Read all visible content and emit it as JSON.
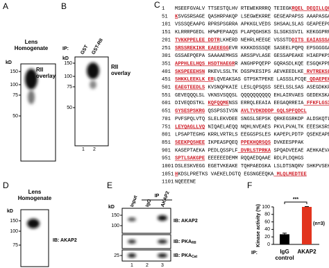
{
  "panels": {
    "a": {
      "letter": "A",
      "title": "Lens Homogenate",
      "kd_label": "kD",
      "markers": [
        150,
        100,
        75,
        50
      ],
      "blot_label": "RII overlay"
    },
    "b": {
      "letter": "B",
      "ip_label": "IP:",
      "lanes": [
        "GST",
        "GST-RII"
      ],
      "lane_numbers": [
        "1",
        "2"
      ],
      "kd_label": "kD",
      "markers": [
        150,
        100,
        75,
        50
      ],
      "blot_label": "RII overlay"
    },
    "c": {
      "letter": "C",
      "lines": [
        {
          "number": "1",
          "segments": [
            {
              "text": "MSEEFGVALV TTSESTQLHV RTEWEKRRRQ TEIEGK",
              "red": false
            },
            {
              "text": "RQEL DEQILLQHEE",
              "red": true
            }
          ]
        },
        {
          "number": "51",
          "segments": [
            {
              "text": "K",
              "red": true
            },
            {
              "text": "SVGSRSAGE QASHRPAKQP LSEGWEKRRE GEGEAPAPSS AAAPASGASP",
              "red": false
            }
          ]
        },
        {
          "number": "101",
          "segments": [
            {
              "text": "VSSSQEAAPG RPRSPSGRRA APKKGLVEDS SHSAALSLAS GEAPEEPGAV",
              "red": false
            }
          ]
        },
        {
          "number": "151",
          "segments": [
            {
              "text": "KLRRRPGEDL HPWPEPAAQS PLAPQGHSKS SLSGKSSVIL KEKGGPRRGG",
              "red": false
            }
          ]
        },
        {
          "number": "201",
          "segments": [
            {
              "text": "TVKKPPELEE DDTR",
              "red": true
            },
            {
              "text": "LKHERD NEHRLHEEGE VSSSTD",
              "red": false
            },
            {
              "text": "DITS EAIASSSADM",
              "red": true
            }
          ]
        },
        {
          "number": "251",
          "segments": [
            {
              "text": "SRSSREKIKR EAEEEGG",
              "red": true
            },
            {
              "text": "EVR KKKKDSSSQE SASEELPQPQ EPSGGGGAAP",
              "red": false
            }
          ]
        },
        {
          "number": "301",
          "segments": [
            {
              "text": "GSSAEPQEPA SAAAAEMHSS ARSSPVLASE GESSAPEAKE HIAEPKPSEA",
              "red": false
            }
          ]
        },
        {
          "number": "351",
          "segments": [
            {
              "text": "APPHLELHQS HSDTHAEGR",
              "red": true
            },
            {
              "text": "R ANGHPPQEPP GQRASDLKQE ESGQKPPEAL",
              "red": false
            }
          ]
        },
        {
          "number": "401",
          "segments": [
            {
              "text": "SKSPEEEHSN",
              "red": true
            },
            {
              "text": " RKEVLSSLTK DGSPKESIPS AEVKEEDLKE",
              "red": false
            },
            {
              "text": " RVTREKSLLS",
              "red": true
            }
          ]
        },
        {
          "number": "451",
          "segments": [
            {
              "text": "SHKKLEEKLK ER",
              "red": true
            },
            {
              "text": "LQVEAKSAS GTPSKTPEKE LASSSLPCQE",
              "red": false
            },
            {
              "text": " QDAEPEKKAV",
              "red": true
            }
          ]
        },
        {
          "number": "501",
          "segments": [
            {
              "text": "EAEGTEEDLS",
              "red": true
            },
            {
              "text": " KVSNQPKAIE LESLQPSQSS SEELSSLSAS ASEGDKKPLA",
              "red": false
            }
          ]
        },
        {
          "number": "551",
          "segments": [
            {
              "text": "GEVEQQQLSL VKNSVSQQSL QQQQQQQQQQ EHLAIRVAES GEDEKSKAEQ",
              "red": false
            }
          ]
        },
        {
          "number": "601",
          "segments": [
            {
              "text": "DIVEQDSTKL ",
              "red": false
            },
            {
              "text": "KQFQQME",
              "red": true
            },
            {
              "text": "NSS ERRQLEEAIA EEGAQRREIA",
              "red": false
            },
            {
              "text": " FFKFLGSINS",
              "red": true
            }
          ]
        },
        {
          "number": "651",
          "segments": [
            {
              "text": "GYSESPSKRG",
              "red": true
            },
            {
              "text": " QSSPSSIVSN ",
              "red": false
            },
            {
              "text": "AVLTVDKDDDP GQLSPFQDCL",
              "red": true
            }
          ]
        },
        {
          "number": "701",
          "segments": [
            {
              "text": "PVFSPQLVTQ SLELEKVDEE SNGSLSEPSK QRKEGSRKDP ALDSKQTLRE",
              "red": false
            }
          ]
        },
        {
          "number": "751",
          "segments": [
            {
              "text": "LEYQAGLLVQ",
              "red": true
            },
            {
              "text": " NIQAELAEQQ NQHLNVEAES PKVLPVALTK EEESKSRSKE",
              "red": false
            }
          ]
        },
        {
          "number": "801",
          "segments": [
            {
              "text": "LPSAPTEGHG KRRLVRTRLS EEGGSPSLES KAPEPLPDTP QSEKEAPEKE",
              "red": false
            }
          ]
        },
        {
          "number": "851",
          "segments": [
            {
              "text": "SEEKPQSHEE",
              "red": true
            },
            {
              "text": " IKPEASPQEQ ",
              "red": false
            },
            {
              "text": "PPEKHQRSQS",
              "red": true
            },
            {
              "text": " DVKEESPPAK",
              "red": false
            }
          ]
        },
        {
          "number": "901",
          "segments": [
            {
              "text": "KASEPTAEKA PEDLQSSPLF",
              "red": false
            },
            {
              "text": " DVRLSTPRKA",
              "red": true
            },
            {
              "text": " SPQADVEEAE AEHKAEVAPL",
              "red": false
            }
          ]
        },
        {
          "number": "951",
          "segments": [
            {
              "text": "SPTLSAKGPE",
              "red": true
            },
            {
              "text": " EEEEEEDEMM RQQAEDQAAE RDLPLDQHGS",
              "red": false
            }
          ]
        },
        {
          "number": "1001",
          "segments": [
            {
              "text": "DSLESKVEGG EGETVKEAKE TQHPAEDSKA LSLDTSNQRV SHKPVSEKKE",
              "red": false
            }
          ]
        },
        {
          "number": "1051",
          "segments": [
            {
              "text": "H",
              "red": true
            },
            {
              "text": "KDSLPRETKS VAEKELDGTQ EGSNGEEQKA",
              "red": false
            },
            {
              "text": " MLQLMEDTEE",
              "red": true
            }
          ]
        },
        {
          "number": "1101",
          "segments": [
            {
              "text": "NQEEENE",
              "red": false
            }
          ]
        }
      ]
    },
    "d": {
      "letter": "D",
      "title": "Lens Homogenate",
      "kd_label": "kD",
      "markers": [
        150,
        100,
        75
      ],
      "blot_label": "IB: AKAP2"
    },
    "e": {
      "letter": "E",
      "ip_label": "IP",
      "lanes": [
        "Input",
        "IgG",
        "AKAP2"
      ],
      "lane_numbers": [
        "1",
        "2",
        "3"
      ],
      "kd_label": "kD",
      "blots": [
        {
          "label": "IB: AKAP2",
          "markers": [
            150,
            100
          ]
        },
        {
          "label": "IB: PKA",
          "subscript": "RII",
          "markers": []
        },
        {
          "label": "IB: PKA",
          "subscript": "Cat",
          "markers": [
            25
          ]
        }
      ]
    }
  },
  "chart_data": {
    "type": "bar",
    "letter": "F",
    "ylabel": "Kinase activity (%)",
    "x_prefix": "IP:",
    "categories": [
      "IgG control",
      "AKAP2"
    ],
    "values": [
      27,
      100
    ],
    "errors": [
      3,
      1
    ],
    "colors": [
      "#000000",
      "#e2341e"
    ],
    "ylim": [
      0,
      100
    ],
    "yticks": [
      0,
      20,
      40,
      60,
      80,
      100
    ],
    "annotations": [
      "***",
      "(n=3)"
    ]
  }
}
